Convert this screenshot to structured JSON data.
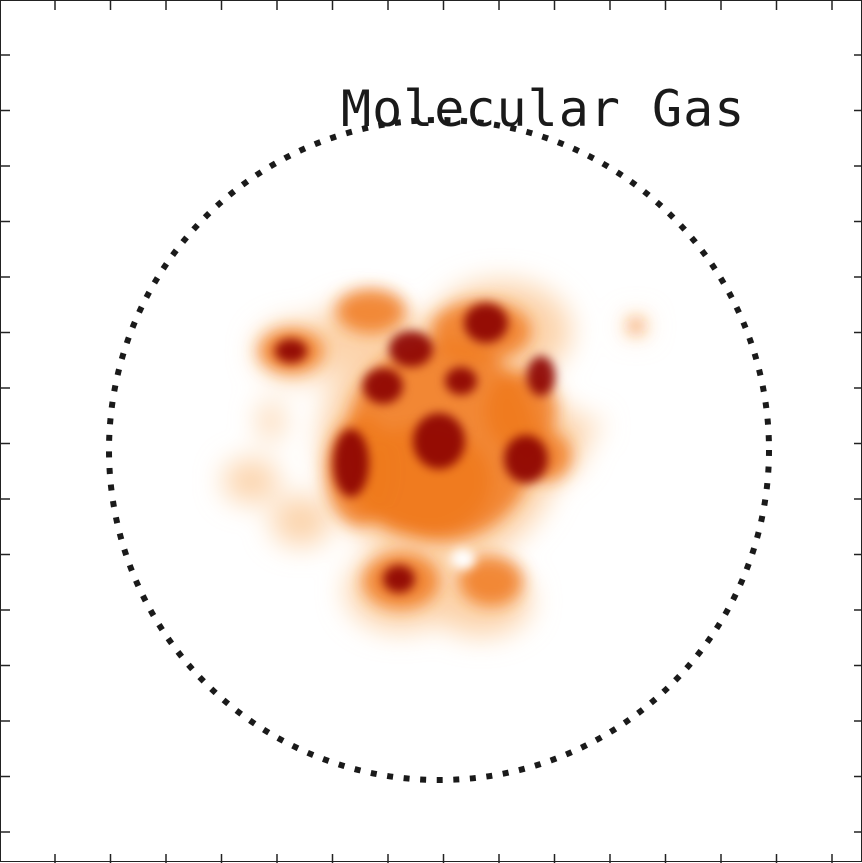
{
  "panel": {
    "label": "Molecular Gas"
  },
  "colors": {
    "frame": "#222222",
    "circle": "#1a1a1a",
    "emission_low": "#fcd2a8",
    "emission_mid": "#f07a1e",
    "emission_high": "#8b0000",
    "background": "#ffffff"
  }
}
